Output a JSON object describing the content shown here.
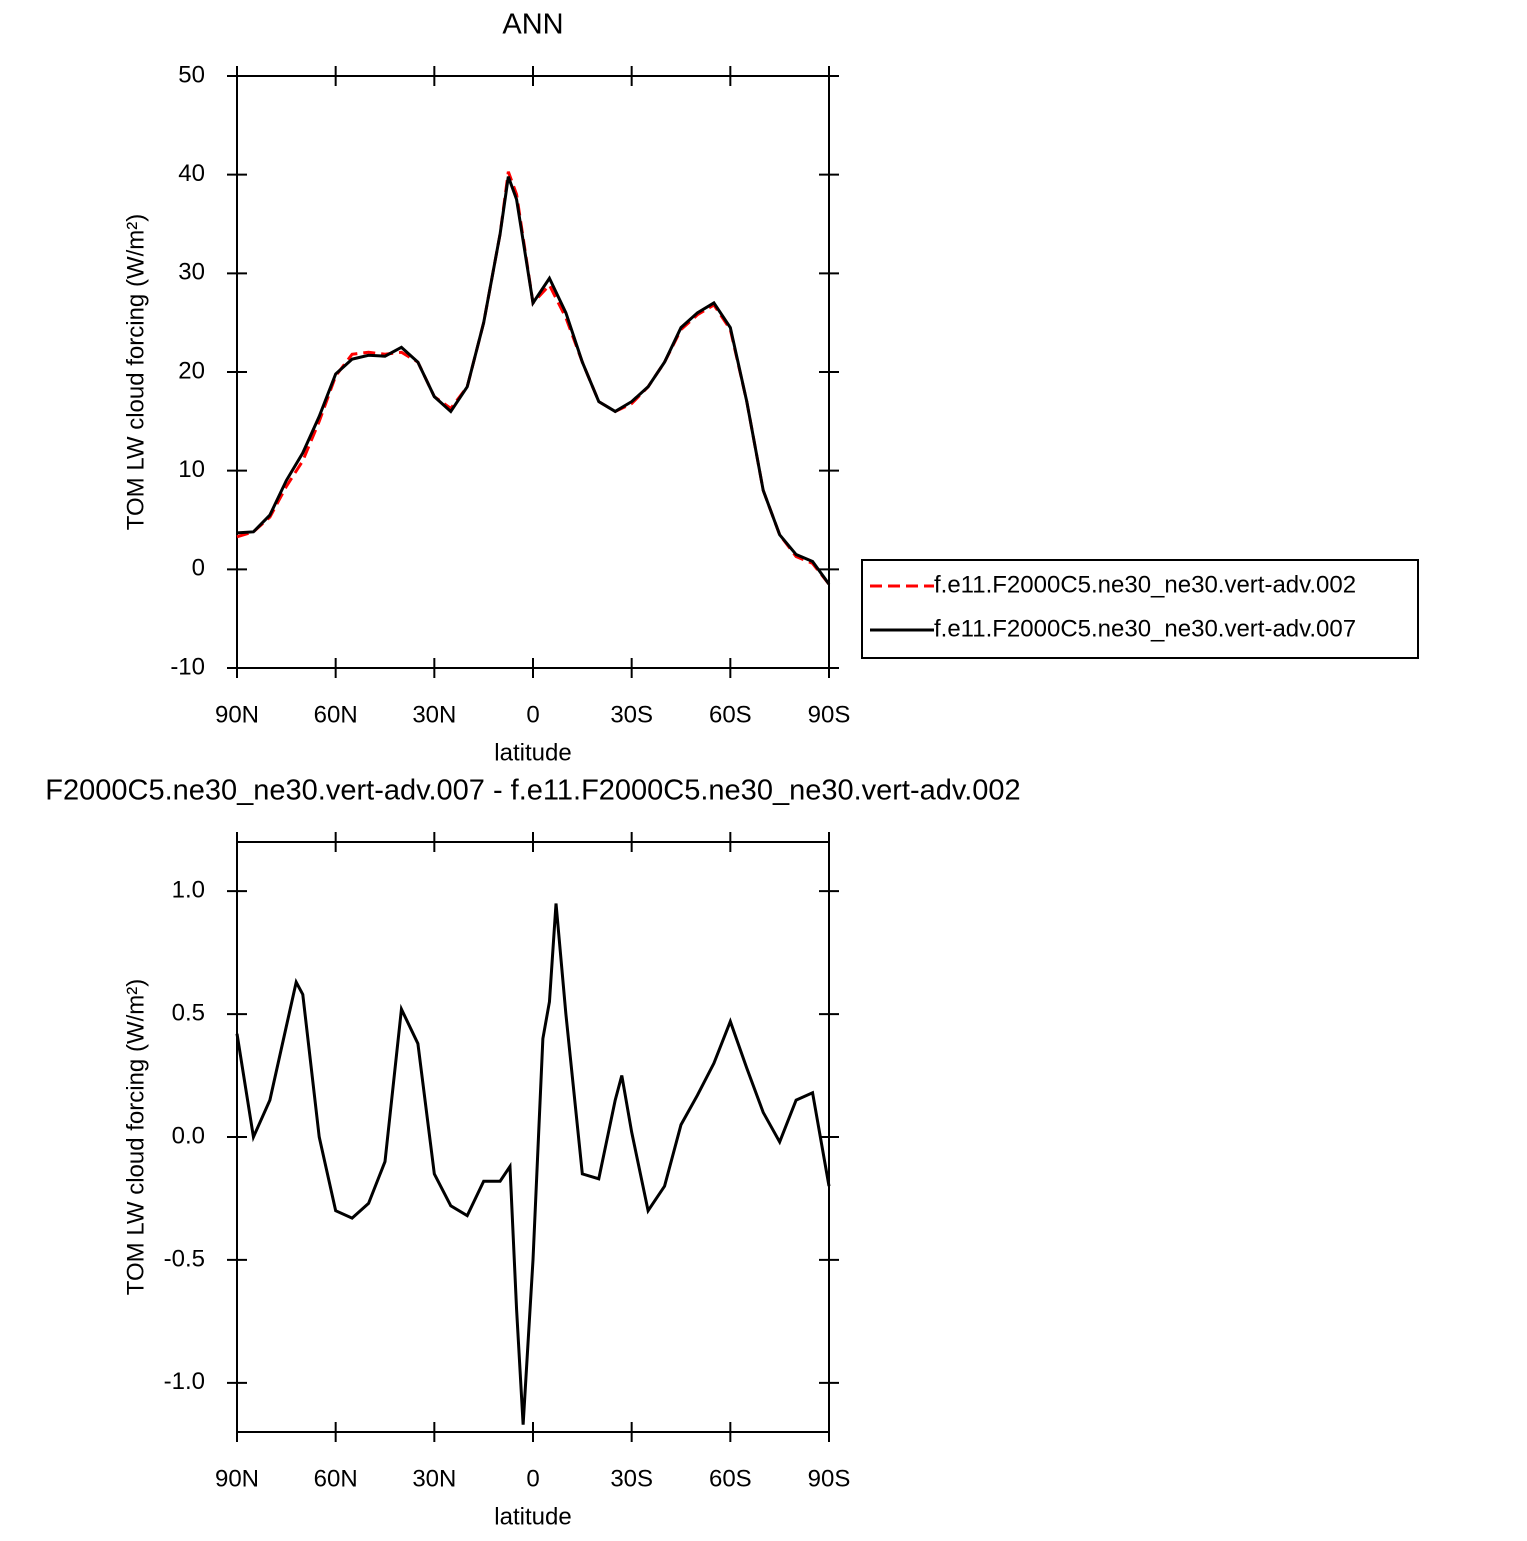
{
  "chart_data": [
    {
      "type": "line",
      "title": "ANN",
      "xlabel": "latitude",
      "ylabel": "TOM LW cloud forcing (W/m²)",
      "x": [
        90,
        85,
        80,
        75,
        70,
        65,
        60,
        55,
        50,
        45,
        40,
        35,
        30,
        25,
        20,
        15,
        10,
        7.5,
        5,
        0,
        -5,
        -10,
        -15,
        -20,
        -25,
        -30,
        -35,
        -40,
        -45,
        -50,
        -55,
        -60,
        -65,
        -70,
        -75,
        -80,
        -85,
        -90
      ],
      "series": [
        {
          "name": "f.e11.F2000C5.ne30_ne30.vert-adv.002",
          "color": "#ff0000",
          "linestyle": "dashed",
          "values": [
            3.3,
            3.8,
            5.3,
            8.4,
            11,
            15,
            19.6,
            21.8,
            22,
            21.8,
            22,
            21,
            17.5,
            16.3,
            18.5,
            25,
            34,
            40.3,
            38,
            27,
            28.8,
            25.5,
            21,
            17,
            16,
            16.8,
            18.5,
            21,
            24.3,
            25.8,
            26.8,
            24.3,
            17,
            8,
            3.5,
            1.3,
            0.6,
            -1.5
          ]
        },
        {
          "name": "f.e11.F2000C5.ne30_ne30.vert-adv.007",
          "color": "#000000",
          "linestyle": "solid",
          "values": [
            3.7,
            3.8,
            5.5,
            9,
            11.8,
            15.5,
            19.8,
            21.3,
            21.7,
            21.6,
            22.5,
            21,
            17.5,
            16,
            18.5,
            25,
            34,
            39.8,
            37.5,
            27,
            29.5,
            26,
            21,
            17,
            16,
            17,
            18.5,
            21,
            24.5,
            26,
            27,
            24.5,
            17,
            8,
            3.5,
            1.5,
            0.8,
            -1.5
          ]
        }
      ],
      "xlim": [
        90,
        -90
      ],
      "xticks": [
        {
          "value": 90,
          "label": "90N"
        },
        {
          "value": 60,
          "label": "60N"
        },
        {
          "value": 30,
          "label": "30N"
        },
        0,
        {
          "value": -30,
          "label": "30S"
        },
        {
          "value": -60,
          "label": "60S"
        },
        {
          "value": -90,
          "label": "90S"
        }
      ],
      "ylim": [
        -10,
        50
      ],
      "yticks": [
        -10,
        0,
        10,
        20,
        30,
        40,
        50
      ],
      "legend": "right"
    },
    {
      "type": "line",
      "title": "F2000C5.ne30_ne30.vert-adv.007 - f.e11.F2000C5.ne30_ne30.vert-adv.002",
      "xlabel": "latitude",
      "ylabel": "TOM LW cloud forcing (W/m²)",
      "x": [
        90,
        85,
        80,
        75,
        72,
        70,
        65,
        60,
        55,
        50,
        45,
        40,
        35,
        30,
        25,
        20,
        15,
        10,
        7,
        5,
        3,
        0,
        -3,
        -5,
        -7,
        -10,
        -15,
        -20,
        -25,
        -27,
        -30,
        -35,
        -40,
        -45,
        -50,
        -55,
        -60,
        -65,
        -70,
        -75,
        -80,
        -85,
        -90
      ],
      "series": [
        {
          "color": "#000000",
          "linestyle": "solid",
          "values": [
            0.42,
            0.0,
            0.15,
            0.45,
            0.63,
            0.58,
            0.0,
            -0.3,
            -0.33,
            -0.27,
            -0.1,
            0.52,
            0.38,
            -0.15,
            -0.28,
            -0.32,
            -0.18,
            -0.18,
            -0.12,
            -0.7,
            -1.17,
            -0.5,
            0.4,
            0.55,
            0.95,
            0.5,
            -0.15,
            -0.17,
            0.15,
            0.25,
            0.02,
            -0.3,
            -0.2,
            0.05,
            0.17,
            0.3,
            0.47,
            0.28,
            0.1,
            -0.02,
            0.15,
            0.18,
            -0.2
          ]
        }
      ],
      "xlim": [
        90,
        -90
      ],
      "xticks": [
        {
          "value": 90,
          "label": "90N"
        },
        {
          "value": 60,
          "label": "60N"
        },
        {
          "value": 30,
          "label": "30N"
        },
        0,
        {
          "value": -30,
          "label": "30S"
        },
        {
          "value": -60,
          "label": "60S"
        },
        {
          "value": -90,
          "label": "90S"
        }
      ],
      "ylim": [
        -1.2,
        1.2
      ],
      "yticks": [
        {
          "value": -1,
          "label": "-1.0"
        },
        -0.5,
        {
          "value": 0,
          "label": "0.0"
        },
        0.5,
        {
          "value": 1,
          "label": "1.0"
        }
      ]
    }
  ]
}
